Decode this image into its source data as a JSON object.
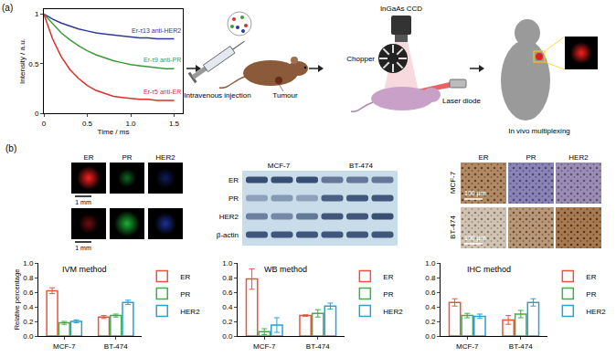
{
  "panel_labels": {
    "a": "(a)",
    "b": "(b)"
  },
  "workflow": {
    "injection": "Intravenous injection",
    "tumour": "Tumour",
    "camera": "InGaAs CCD",
    "chopper": "Chopper",
    "laser": "Laser diode",
    "result": "In vivo multiplexing"
  },
  "imaging": {
    "columns": [
      "ER",
      "PR",
      "HER2"
    ],
    "scale_bar": "1 mm"
  },
  "western_blot": {
    "groups": [
      "MCF-7",
      "BT-474"
    ],
    "rows": [
      "ER",
      "PR",
      "HER2",
      "β-actin"
    ]
  },
  "ihc": {
    "columns": [
      "ER",
      "PR",
      "HER2"
    ],
    "rows": [
      "MCF-7",
      "BT-474"
    ],
    "scale_bar": "100 μm"
  },
  "chart_data": [
    {
      "type": "line",
      "xlabel": "Time / ms",
      "ylabel": "Intensity / a.u.",
      "x": [
        0,
        0.1,
        0.2,
        0.3,
        0.4,
        0.5,
        0.6,
        0.7,
        0.8,
        0.9,
        1.0,
        1.1,
        1.2,
        1.3,
        1.4,
        1.5
      ],
      "xlim": [
        0,
        1.6
      ],
      "xticks": [
        0,
        0.5,
        {
          "value": 1,
          "label": "1.0"
        },
        1.5
      ],
      "ylim": [
        0,
        1.05
      ],
      "yticks": [
        0,
        0.5,
        1
      ],
      "series": [
        {
          "name": "Er-τ13 anti-HER2",
          "color": "#2b3a9a",
          "values": [
            1,
            0.95,
            0.91,
            0.88,
            0.85,
            0.83,
            0.81,
            0.8,
            0.79,
            0.78,
            0.77,
            0.76,
            0.76,
            0.75,
            0.75,
            0.75
          ]
        },
        {
          "name": "Er-τ9 anti-PR",
          "color": "#3a9a3a",
          "values": [
            1,
            0.9,
            0.81,
            0.74,
            0.68,
            0.63,
            0.59,
            0.56,
            0.53,
            0.51,
            0.49,
            0.48,
            0.47,
            0.46,
            0.45,
            0.45
          ]
        },
        {
          "name": "Er-τ5 anti-ER",
          "color": "#d6312b",
          "values": [
            1,
            0.75,
            0.57,
            0.44,
            0.35,
            0.28,
            0.23,
            0.2,
            0.17,
            0.16,
            0.15,
            0.14,
            0.14,
            0.13,
            0.13,
            0.13
          ]
        }
      ]
    },
    {
      "type": "bar",
      "title": "IVM method",
      "ylabel": "Relative percentage",
      "categories": [
        "MCF-7",
        "BT-474"
      ],
      "ylim": [
        0,
        1
      ],
      "yticks": [
        {
          "value": 0,
          "label": "0.0"
        },
        0.2,
        0.4,
        0.6,
        0.8,
        {
          "value": 1,
          "label": "1.0"
        }
      ],
      "legend": "upper right",
      "series": [
        {
          "name": "ER",
          "color": "#e9553b",
          "values": [
            0.62,
            0.26
          ],
          "errors": [
            0.04,
            0.02
          ]
        },
        {
          "name": "PR",
          "color": "#3cb04a",
          "values": [
            0.18,
            0.28
          ],
          "errors": [
            0.02,
            0.02
          ]
        },
        {
          "name": "HER2",
          "color": "#2a9fd8",
          "values": [
            0.2,
            0.46
          ],
          "errors": [
            0.02,
            0.03
          ]
        }
      ]
    },
    {
      "type": "bar",
      "title": "WB method",
      "categories": [
        "MCF-7",
        "BT-474"
      ],
      "ylim": [
        0,
        1
      ],
      "yticks": [
        {
          "value": 0,
          "label": "0.0"
        },
        0.2,
        0.4,
        0.6,
        0.8,
        {
          "value": 1,
          "label": "1.0"
        }
      ],
      "legend": "upper right",
      "series": [
        {
          "name": "ER",
          "color": "#e9553b",
          "values": [
            0.78,
            0.28
          ],
          "errors": [
            0.14,
            0.01
          ]
        },
        {
          "name": "PR",
          "color": "#3cb04a",
          "values": [
            0.06,
            0.31
          ],
          "errors": [
            0.04,
            0.05
          ]
        },
        {
          "name": "HER2",
          "color": "#2a9fd8",
          "values": [
            0.15,
            0.41
          ],
          "errors": [
            0.1,
            0.04
          ]
        }
      ]
    },
    {
      "type": "bar",
      "title": "IHC method",
      "categories": [
        "MCF-7",
        "BT-474"
      ],
      "ylim": [
        0,
        1
      ],
      "yticks": [
        {
          "value": 0,
          "label": "0.0"
        },
        0.2,
        0.4,
        0.6,
        0.8,
        {
          "value": 1,
          "label": "1.0"
        }
      ],
      "legend": "upper right",
      "series": [
        {
          "name": "ER",
          "color": "#e9553b",
          "values": [
            0.46,
            0.22
          ],
          "errors": [
            0.05,
            0.06
          ]
        },
        {
          "name": "PR",
          "color": "#3cb04a",
          "values": [
            0.28,
            0.3
          ],
          "errors": [
            0.03,
            0.05
          ]
        },
        {
          "name": "HER2",
          "color": "#2a9fd8",
          "values": [
            0.27,
            0.46
          ],
          "errors": [
            0.03,
            0.05
          ]
        }
      ]
    }
  ]
}
